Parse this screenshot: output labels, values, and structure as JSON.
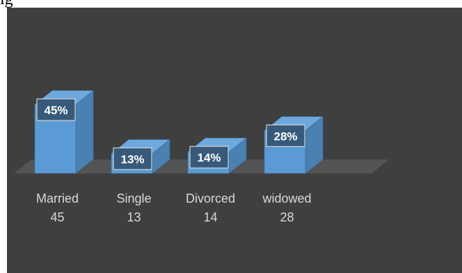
{
  "caption": "ig",
  "chart_data": {
    "type": "bar",
    "categories": [
      "Married",
      "Single",
      "Divorced",
      "widowed"
    ],
    "values": [
      45,
      13,
      14,
      28
    ],
    "percent_labels": [
      "45%",
      "13%",
      "14%",
      "28%"
    ],
    "ylim": [
      0,
      50
    ],
    "grid": false,
    "legend": "none",
    "colors": {
      "background": "#3f3f3f",
      "bar_front": "#5b9bd5",
      "bar_side": "#4a80b2",
      "bar_top": "#6ea9de",
      "floor": "#545454",
      "label_box": "#375a7b",
      "label_border": "#d0d0d0",
      "axis_text": "#d9d9d9"
    }
  }
}
